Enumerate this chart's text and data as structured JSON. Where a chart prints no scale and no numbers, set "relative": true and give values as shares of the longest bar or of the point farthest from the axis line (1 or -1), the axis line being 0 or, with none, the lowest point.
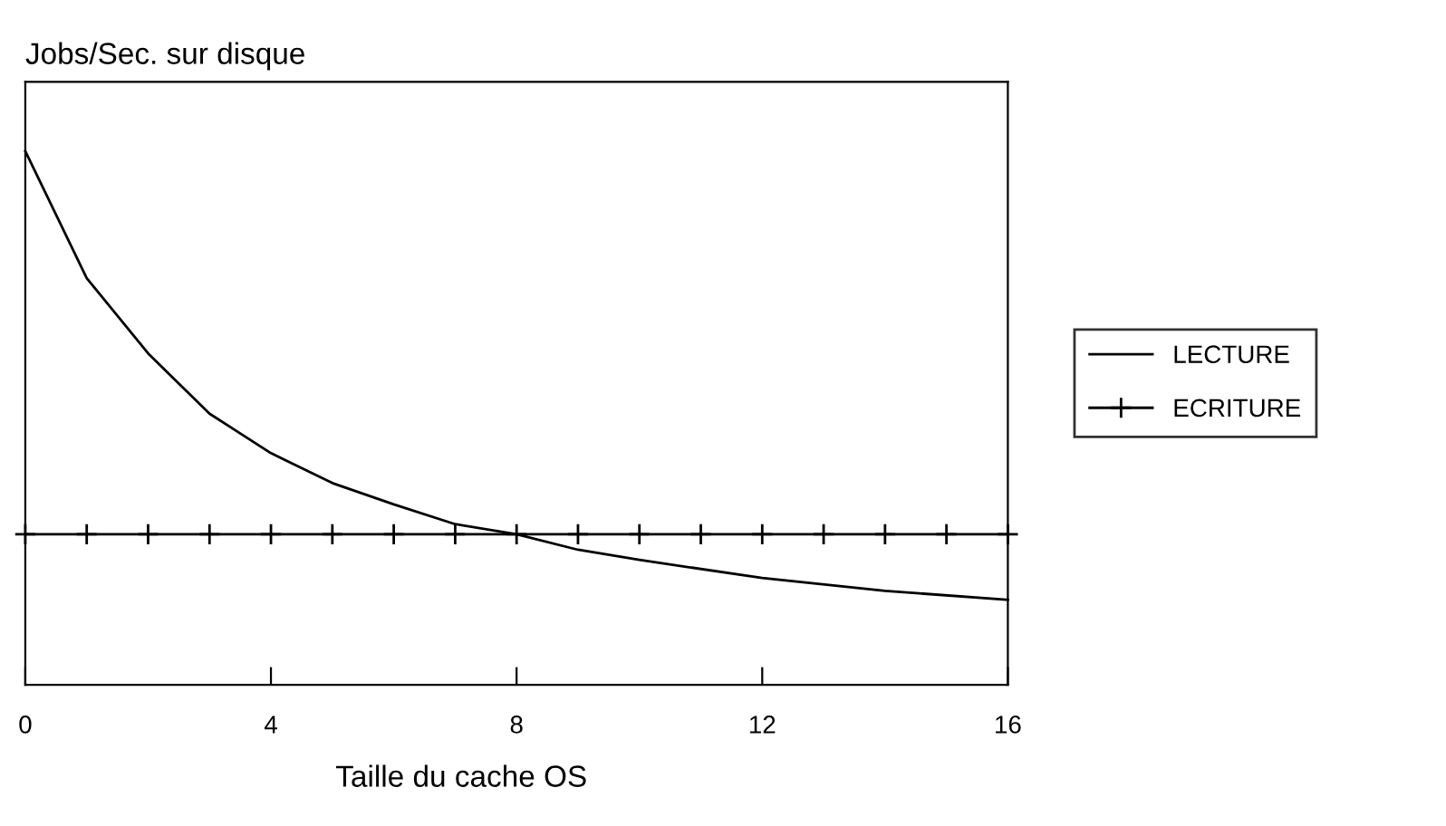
{
  "chart_data": {
    "type": "line",
    "relative": true,
    "ylabel": "Jobs/Sec. sur disque",
    "xlabel": "Taille du cache OS",
    "xlim": [
      0,
      16
    ],
    "xticks": [
      0,
      4,
      8,
      12,
      16
    ],
    "tick_labels": "x",
    "grid": false,
    "legend": "right",
    "series": [
      {
        "name": "LECTURE",
        "color": "#000000",
        "marker": "none",
        "x": [
          0,
          1,
          2,
          3,
          4,
          5,
          6,
          7,
          8,
          9,
          10,
          12,
          14,
          16
        ],
        "values": [
          1,
          0.762,
          0.621,
          0.508,
          0.434,
          0.378,
          0.338,
          0.301,
          0.282,
          0.253,
          0.234,
          0.2,
          0.176,
          0.159
        ]
      },
      {
        "name": "ECRITURE",
        "color": "#000000",
        "marker": "cross",
        "x": [
          0,
          1,
          2,
          3,
          4,
          5,
          6,
          7,
          8,
          9,
          10,
          11,
          12,
          13,
          14,
          15,
          16
        ],
        "values": [
          0.282,
          0.282,
          0.282,
          0.282,
          0.282,
          0.282,
          0.282,
          0.282,
          0.282,
          0.282,
          0.282,
          0.282,
          0.282,
          0.282,
          0.282,
          0.282,
          0.282
        ]
      }
    ]
  }
}
